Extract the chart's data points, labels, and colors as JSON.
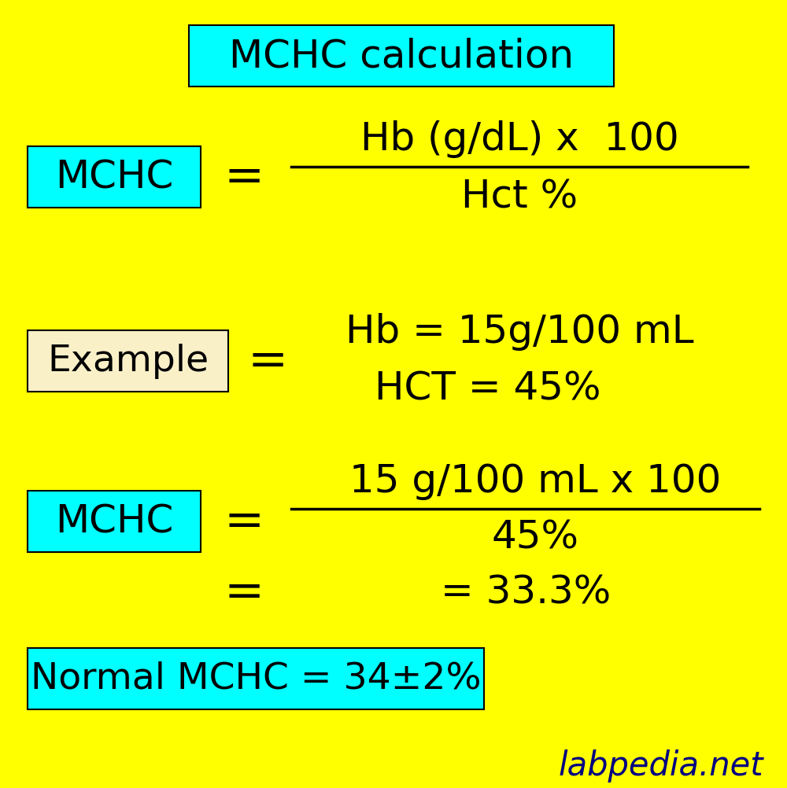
{
  "bg_color": "#FFFF00",
  "title_text": "MCHC calculation",
  "title_box_color": "#00FFFF",
  "mchc_box_color": "#00FFFF",
  "example_box_color": "#FAF0C8",
  "normal_box_color": "#00FFFF",
  "text_color": "#000000",
  "watermark": "labpedia.net",
  "watermark_color": "#000080",
  "formula_numerator": "Hb (g/dL) x  100",
  "formula_denominator": "Hct %",
  "example_line1": "Hb = 15g/100 mL",
  "example_line2": "HCT = 45%",
  "calc_numerator": "15 g/100 mL x 100",
  "calc_denominator": "45%",
  "calc_result": "= 33.3%",
  "normal_text": "Normal MCHC = 34±2%",
  "fig_width": 10.0,
  "fig_height": 10.02,
  "dpi": 100
}
